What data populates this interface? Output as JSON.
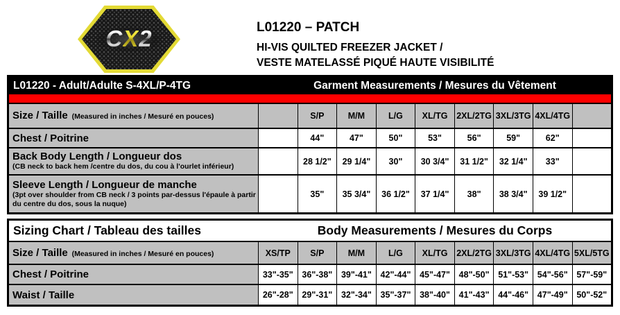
{
  "logo": {
    "letter1": "C",
    "letter2": "X",
    "letter3": "2"
  },
  "header": {
    "product_code_title": "L01220 – PATCH",
    "product_name_en": "HI-VIS QUILTED FREEZER JACKET /",
    "product_name_fr": "VESTE MATELASSÉ PIQUÉ HAUTE VISIBILITÉ"
  },
  "colors": {
    "accent_yellow": "#e3da35",
    "bar_red": "#fe0000",
    "header_gray": "#c0c0c0",
    "bar_black": "#000000"
  },
  "garment_table": {
    "title_left": "L01220 - Adult/Adulte S-4XL/P-4TG",
    "title_right": "Garment Measurements / Mesures du Vêtement",
    "size_label": "Size / Taille",
    "size_note": "(Measured in inches / Mesuré en pouces)",
    "columns": [
      "",
      "S/P",
      "M/M",
      "L/G",
      "XL/TG",
      "2XL/2TG",
      "3XL/3TG",
      "4XL/4TG",
      ""
    ],
    "rows": [
      {
        "label": "Chest / Poitrine",
        "note": "",
        "values": [
          "",
          "44\"",
          "47\"",
          "50\"",
          "53\"",
          "56\"",
          "59\"",
          "62\"",
          ""
        ]
      },
      {
        "label": "Back Body Length / Longueur dos",
        "note": "(CB neck to back hem /centre du dos, du cou à l'ourlet inférieur)",
        "values": [
          "",
          "28 1/2\"",
          "29 1/4\"",
          "30\"",
          "30 3/4\"",
          "31 1/2\"",
          "32 1/4\"",
          "33\"",
          ""
        ]
      },
      {
        "label": "Sleeve Length / Longueur de manche",
        "note": "(3pt over shoulder from CB neck / 3 points par-dessus l'épaule à partir du centre du dos, sous la nuque)",
        "values": [
          "",
          "35\"",
          "35 3/4\"",
          "36 1/2\"",
          "37 1/4\"",
          "38\"",
          "38 3/4\"",
          "39 1/2\"",
          ""
        ]
      }
    ]
  },
  "body_table": {
    "title_left": "Sizing Chart / Tableau des tailles",
    "title_right": "Body Measurements / Mesures du Corps",
    "size_label": "Size / Taille",
    "size_note": "(Measured in inches / Mesuré en pouces)",
    "columns": [
      "XS/TP",
      "S/P",
      "M/M",
      "L/G",
      "XL/TG",
      "2XL/2TG",
      "3XL/3TG",
      "4XL/4TG",
      "5XL/5TG"
    ],
    "rows": [
      {
        "label": "Chest / Poitrine",
        "note": "",
        "values": [
          "33\"-35\"",
          "36\"-38\"",
          "39\"-41\"",
          "42\"-44\"",
          "45\"-47\"",
          "48\"-50\"",
          "51\"-53\"",
          "54\"-56\"",
          "57\"-59\""
        ]
      },
      {
        "label": "Waist / Taille",
        "note": "",
        "values": [
          "26\"-28\"",
          "29\"-31\"",
          "32\"-34\"",
          "35\"-37\"",
          "38\"-40\"",
          "41\"-43\"",
          "44\"-46\"",
          "47\"-49\"",
          "50\"-52\""
        ]
      }
    ]
  }
}
